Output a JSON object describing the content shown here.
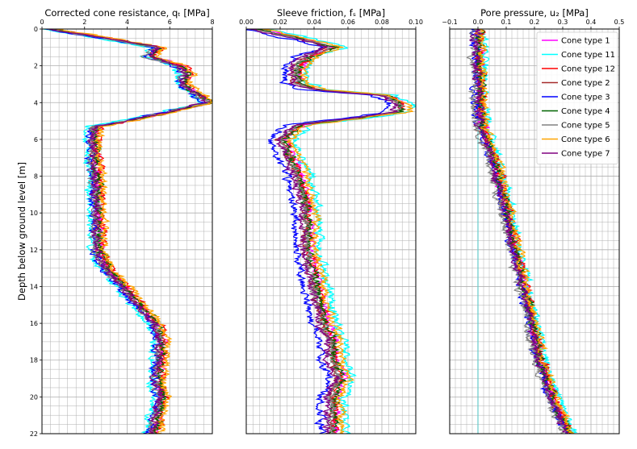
{
  "ylabel": "Depth below ground level [m]",
  "chart_data": [
    {
      "type": "line",
      "title": "Corrected cone resistance, qₜ [MPa]",
      "xlabel": "",
      "ylabel": "Depth below ground level [m]",
      "xlim": [
        0,
        8
      ],
      "ylim": [
        22,
        0
      ],
      "xticks": [
        "0",
        "2",
        "4",
        "6",
        "8"
      ],
      "yticks": [
        "0",
        "2",
        "4",
        "6",
        "8",
        "10",
        "12",
        "14",
        "16",
        "18",
        "20",
        "22"
      ],
      "grid": true,
      "reference_profile": {
        "depth": [
          0,
          0.5,
          1,
          1.5,
          2,
          2.5,
          3,
          3.5,
          4,
          4.5,
          5,
          5.3,
          6,
          8,
          10,
          12,
          13,
          14,
          15,
          16,
          17,
          18,
          19,
          20,
          21,
          22
        ],
        "value": [
          0.3,
          3.0,
          5.5,
          5.0,
          6.5,
          6.8,
          6.6,
          7.2,
          7.8,
          6.0,
          4.0,
          2.5,
          2.4,
          2.5,
          2.6,
          2.6,
          3.0,
          3.8,
          4.5,
          5.3,
          5.6,
          5.5,
          5.4,
          5.6,
          5.4,
          5.2
        ]
      },
      "series": [
        {
          "name": "Cone type 1",
          "offset": 0.1
        },
        {
          "name": "Cone type 11",
          "offset": -0.3
        },
        {
          "name": "Cone type 12",
          "offset": 0.2
        },
        {
          "name": "Cone type 2",
          "offset": 0.0
        },
        {
          "name": "Cone type 3",
          "offset": -0.2
        },
        {
          "name": "Cone type 4",
          "offset": 0.1
        },
        {
          "name": "Cone type 5",
          "offset": -0.1
        },
        {
          "name": "Cone type 6",
          "offset": 0.3
        },
        {
          "name": "Cone type 7",
          "offset": -0.05
        }
      ]
    },
    {
      "type": "line",
      "title": "Sleeve friction, fₛ [MPa]",
      "xlabel": "",
      "xlim": [
        0,
        0.1
      ],
      "ylim": [
        22,
        0
      ],
      "xticks": [
        "0.00",
        "0.02",
        "0.04",
        "0.06",
        "0.08",
        "0.10"
      ],
      "yticks": [],
      "grid": true,
      "reference_profile": {
        "depth": [
          0,
          0.5,
          1,
          1.5,
          2,
          2.5,
          3,
          3.3,
          3.6,
          4,
          4.5,
          4.9,
          5.2,
          6,
          8,
          10,
          12,
          14,
          16,
          17,
          18,
          19,
          20,
          21,
          22
        ],
        "value": [
          0.005,
          0.03,
          0.05,
          0.035,
          0.03,
          0.028,
          0.03,
          0.04,
          0.08,
          0.09,
          0.09,
          0.06,
          0.03,
          0.02,
          0.03,
          0.035,
          0.035,
          0.04,
          0.045,
          0.05,
          0.05,
          0.055,
          0.05,
          0.05,
          0.05
        ]
      },
      "series": [
        {
          "name": "Cone type 1",
          "offset": 0.003
        },
        {
          "name": "Cone type 11",
          "offset": 0.008
        },
        {
          "name": "Cone type 12",
          "offset": 0.002
        },
        {
          "name": "Cone type 2",
          "offset": 0.0
        },
        {
          "name": "Cone type 3",
          "offset": -0.006
        },
        {
          "name": "Cone type 4",
          "offset": 0.002
        },
        {
          "name": "Cone type 5",
          "offset": 0.0
        },
        {
          "name": "Cone type 6",
          "offset": 0.006
        },
        {
          "name": "Cone type 7",
          "offset": -0.002
        }
      ]
    },
    {
      "type": "line",
      "title": "Pore pressure, u₂ [MPa]",
      "xlabel": "",
      "xlim": [
        -0.1,
        0.5
      ],
      "ylim": [
        22,
        0
      ],
      "xticks": [
        "−0.1",
        "0.0",
        "0.1",
        "0.2",
        "0.3",
        "0.4",
        "0.5"
      ],
      "yticks": [],
      "grid": true,
      "reference_profile": {
        "depth": [
          0,
          2,
          4,
          5,
          5.5,
          6,
          8,
          10,
          12,
          14,
          16,
          18,
          20,
          22
        ],
        "value": [
          0.0,
          0.0,
          0.005,
          0.01,
          0.01,
          0.03,
          0.07,
          0.1,
          0.13,
          0.16,
          0.19,
          0.22,
          0.26,
          0.32
        ]
      },
      "series": [
        {
          "name": "Cone type 1",
          "offset": 0.005
        },
        {
          "name": "Cone type 11",
          "offset": 0.02
        },
        {
          "name": "Cone type 12",
          "offset": 0.01
        },
        {
          "name": "Cone type 2",
          "offset": 0.0
        },
        {
          "name": "Cone type 3",
          "offset": -0.01
        },
        {
          "name": "Cone type 4",
          "offset": 0.005
        },
        {
          "name": "Cone type 5",
          "offset": -0.015
        },
        {
          "name": "Cone type 6",
          "offset": 0.015
        },
        {
          "name": "Cone type 7",
          "offset": -0.005
        }
      ],
      "legend": {
        "placement": "top-right",
        "entries": [
          "Cone type 1",
          "Cone type 11",
          "Cone type 12",
          "Cone type 2",
          "Cone type 3",
          "Cone type 4",
          "Cone type 5",
          "Cone type 6",
          "Cone type 7"
        ]
      }
    }
  ],
  "colors": {
    "Cone type 1": "#ff00ff",
    "Cone type 11": "#00ffff",
    "Cone type 12": "#ff0000",
    "Cone type 2": "#a52a2a",
    "Cone type 3": "#0000ff",
    "Cone type 4": "#006400",
    "Cone type 5": "#808080",
    "Cone type 6": "#ffa500",
    "Cone type 7": "#800080",
    "grid": "#b0b0b0",
    "zero-line": "#66cccc"
  }
}
